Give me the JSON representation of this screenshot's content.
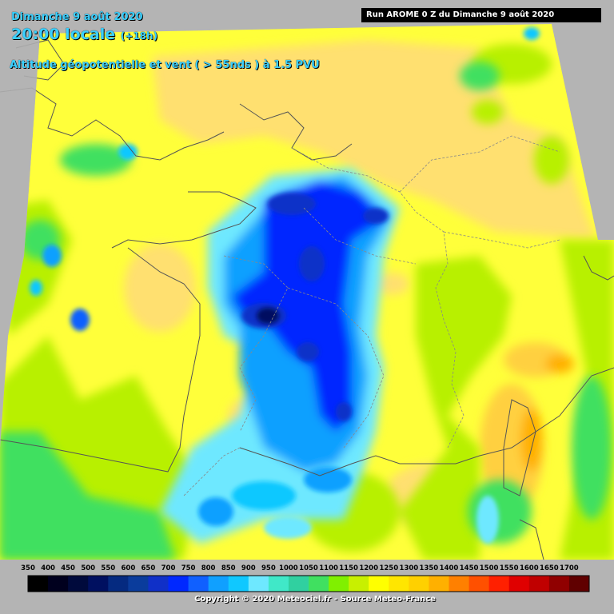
{
  "header": {
    "date": "Dimanche 9 août 2020",
    "time": "20:00 locale",
    "lead": "(+18h)",
    "parameter": "Altitude géopotentielle et vent ( > 55nds ) à 1.5 PVU",
    "run": "Run AROME 0 Z du Dimanche 9 août 2020"
  },
  "legend": {
    "labels": [
      "350",
      "400",
      "450",
      "500",
      "550",
      "600",
      "650",
      "700",
      "750",
      "800",
      "850",
      "900",
      "950",
      "1000",
      "1050",
      "1100",
      "1150",
      "1200",
      "1250",
      "1300",
      "1350",
      "1400",
      "1450",
      "1500",
      "1550",
      "1600",
      "1650",
      "1700"
    ],
    "colors": [
      "#000000",
      "#00001e",
      "#000a3c",
      "#001060",
      "#052a80",
      "#0a3c9c",
      "#1030c8",
      "#0028ff",
      "#1060ff",
      "#10a0ff",
      "#10c8ff",
      "#6ee8ff",
      "#40e8c8",
      "#30d0a0",
      "#40e060",
      "#80f000",
      "#c8f000",
      "#ffff00",
      "#ffe600",
      "#ffd000",
      "#ffb000",
      "#ff8000",
      "#ff5000",
      "#ff2000",
      "#e00000",
      "#c00000",
      "#900000",
      "#600000"
    ]
  },
  "colors": {
    "background": "#b4b4b4",
    "title": "#3ad0ff",
    "yellow_field": "#ffff3a",
    "orange_field": "#ffe070",
    "green_field": "#c0f000",
    "blue_core": "#0028ff"
  },
  "footer": {
    "copyright": "Copyright © 2020 Meteociel.fr - Source Meteo-France"
  }
}
